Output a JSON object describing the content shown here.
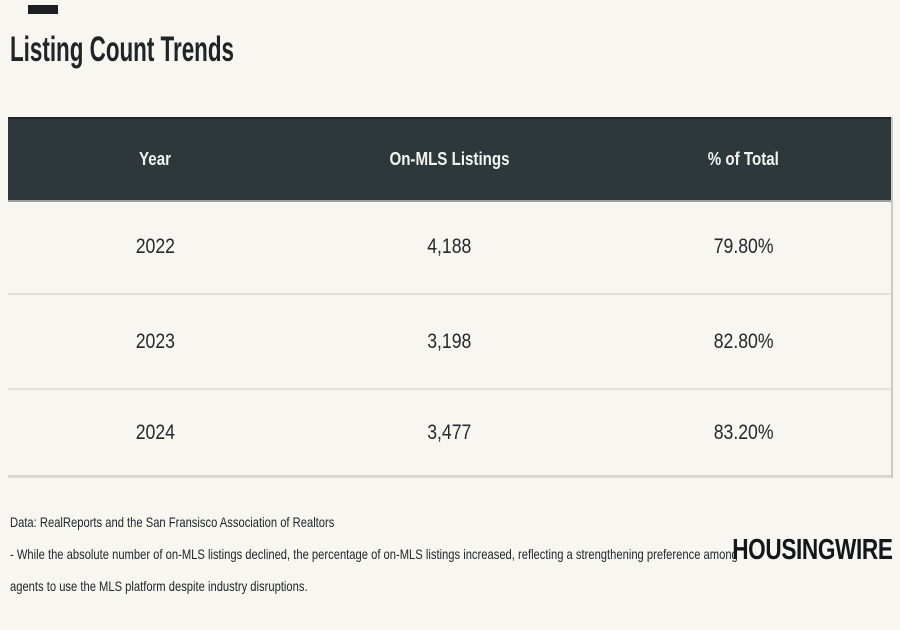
{
  "title": "Listing Count Trends",
  "chart_data": {
    "type": "table",
    "title": "Listing Count Trends",
    "columns": [
      "Year",
      "On-MLS Listings",
      "% of Total"
    ],
    "rows": [
      [
        "2022",
        "4,188",
        "79.80%"
      ],
      [
        "2023",
        "3,198",
        "82.80%"
      ],
      [
        "2024",
        "3,477",
        "83.20%"
      ]
    ],
    "categories": [
      "2022",
      "2023",
      "2024"
    ],
    "series": [
      {
        "name": "On-MLS Listings",
        "values": [
          4188,
          3198,
          3477
        ]
      },
      {
        "name": "% of Total",
        "values": [
          79.8,
          82.8,
          83.2
        ]
      }
    ]
  },
  "footer": {
    "source": "Data: RealReports and the San Fransisco Association of Realtors",
    "note_lines": [
      "- While the absolute number of on-MLS listings declined, the percentage of on-MLS listings increased, reflecting a strengthening preference among",
      "agents to use the MLS platform despite industry disruptions."
    ]
  },
  "logo": "HOUSINGWIRE",
  "colors": {
    "page_bg": "#f8f6f1",
    "header_bg": "#2e373c",
    "header_text": "#f4f3ee",
    "body_text": "#22272b",
    "divider": "#e3e1da",
    "logo": "#14171a"
  }
}
